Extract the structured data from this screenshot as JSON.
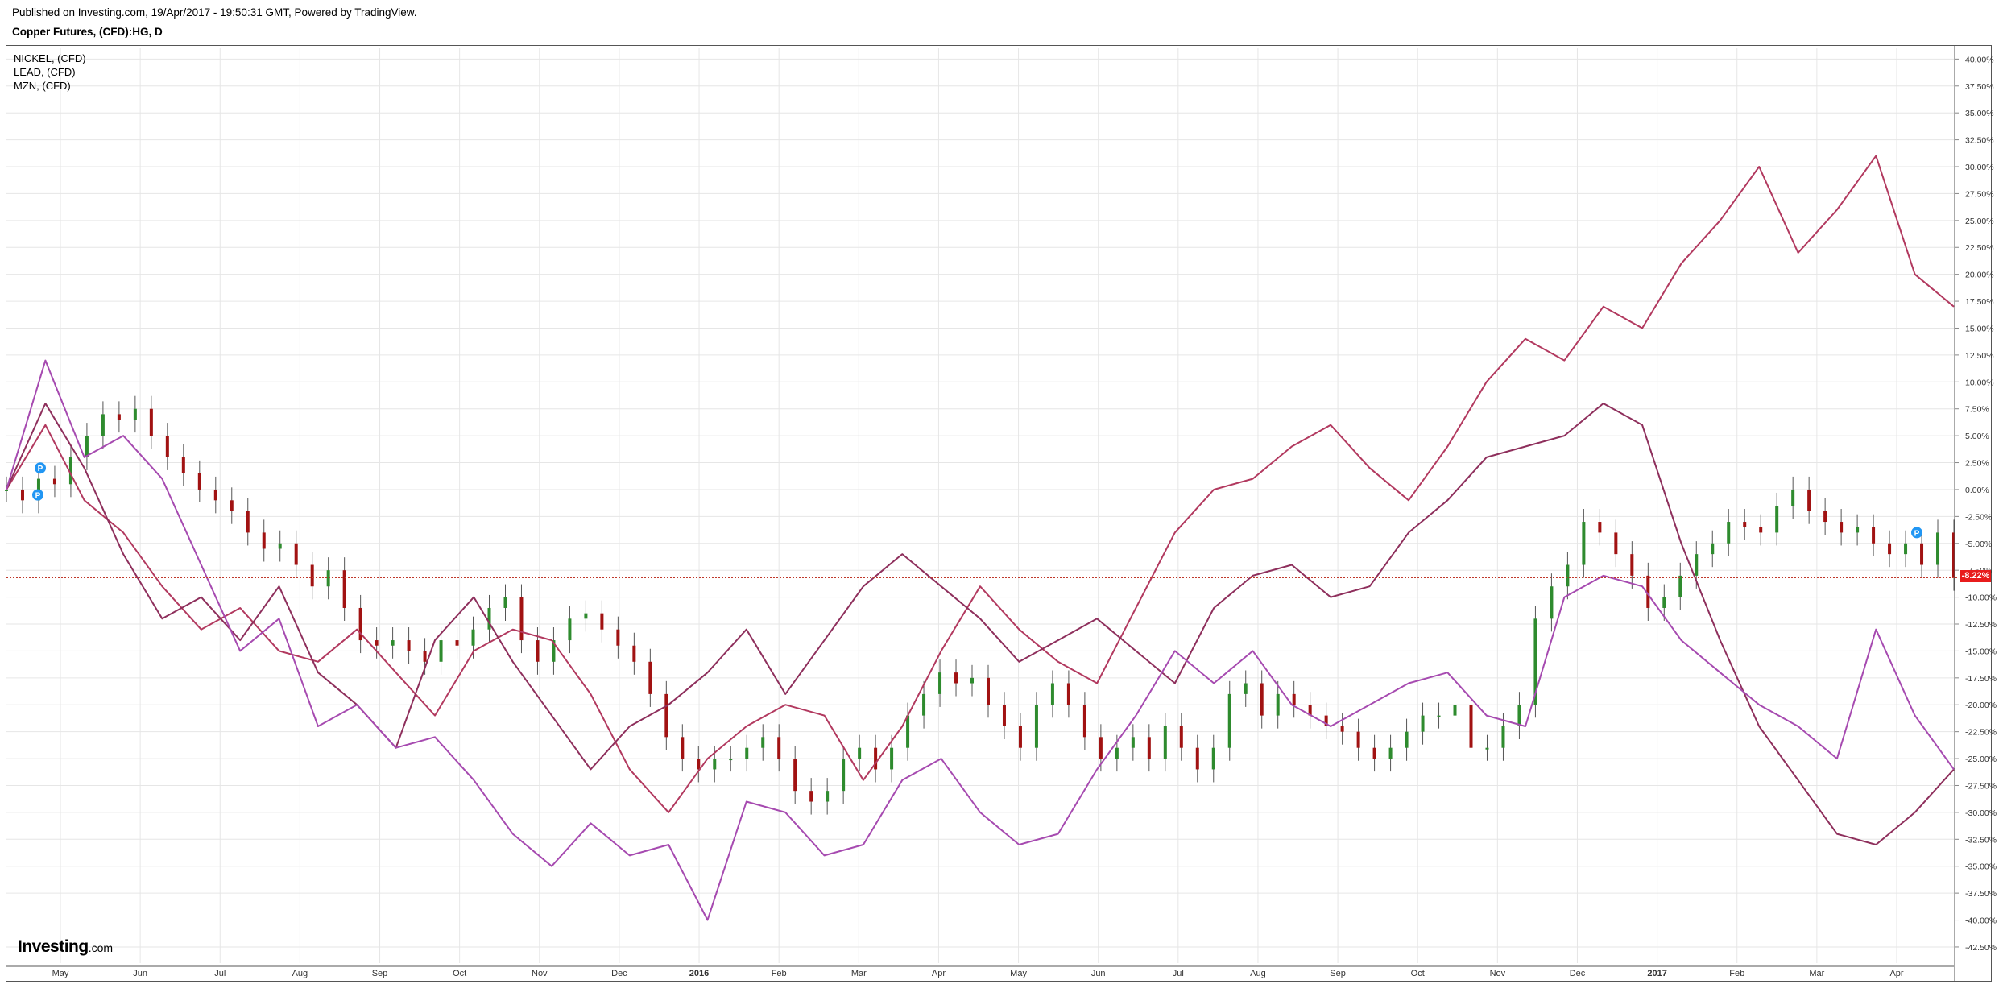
{
  "header": {
    "published": "Published on Investing.com, 19/Apr/2017 - 19:50:31 GMT, Powered by TradingView.",
    "symbol": "Copper Futures, (CFD):HG, D"
  },
  "legend": [
    "NICKEL,  (CFD)",
    "LEAD,  (CFD)",
    "MZN,  (CFD)"
  ],
  "logo": {
    "brand": "Investing",
    "suffix": ".com"
  },
  "last_value_tag": "-8.22%",
  "colors": {
    "grid": "#e6e6e6",
    "up_candle": "#2e8b2e",
    "down_candle": "#a11212",
    "nickel": "#b2395f",
    "lead": "#8e2f5c",
    "mzn": "#a64ab0",
    "last_line": "#c0392b",
    "marker": "#2196f3"
  },
  "chart_data": {
    "type": "line",
    "y_unit": "%",
    "ylim": [
      -44,
      41
    ],
    "y_ticks": [
      "40.00%",
      "37.50%",
      "35.00%",
      "32.50%",
      "30.00%",
      "27.50%",
      "25.00%",
      "22.50%",
      "20.00%",
      "17.50%",
      "15.00%",
      "12.50%",
      "10.00%",
      "7.50%",
      "5.00%",
      "2.50%",
      "0.00%",
      "-2.50%",
      "-5.00%",
      "-7.50%",
      "-10.00%",
      "-12.50%",
      "-15.00%",
      "-17.50%",
      "-20.00%",
      "-22.50%",
      "-25.00%",
      "-27.50%",
      "-30.00%",
      "-32.50%",
      "-35.00%",
      "-37.50%",
      "-40.00%",
      "-42.50%"
    ],
    "x_ticks": [
      "May",
      "Jun",
      "Jul",
      "Aug",
      "Sep",
      "Oct",
      "Nov",
      "Dec",
      "2016",
      "Feb",
      "Mar",
      "Apr",
      "May",
      "Jun",
      "Jul",
      "Aug",
      "Sep",
      "Oct",
      "Nov",
      "Dec",
      "2017",
      "Feb",
      "Mar",
      "Apr"
    ],
    "x_tick_bold": [
      "2016",
      "2017"
    ],
    "grid": true,
    "copper_candles_close": [
      0,
      -1,
      1,
      0.5,
      3,
      5,
      7,
      6.5,
      7.5,
      5,
      3,
      1.5,
      0,
      -1,
      -2,
      -4,
      -5.5,
      -5,
      -7,
      -9,
      -7.5,
      -11,
      -14,
      -14.5,
      -14,
      -15,
      -16,
      -14,
      -14.5,
      -13,
      -11,
      -10,
      -14,
      -16,
      -14,
      -12,
      -11.5,
      -13,
      -14.5,
      -16,
      -19,
      -23,
      -25,
      -26,
      -25,
      -25,
      -24,
      -23,
      -25,
      -28,
      -29,
      -28,
      -25,
      -24,
      -26,
      -24,
      -21,
      -19,
      -17,
      -18,
      -17.5,
      -20,
      -22,
      -24,
      -20,
      -18,
      -20,
      -23,
      -25,
      -24,
      -23,
      -25,
      -22,
      -24,
      -26,
      -24,
      -19,
      -18,
      -21,
      -19,
      -20,
      -21,
      -22,
      -22.5,
      -24,
      -25,
      -24,
      -22.5,
      -21,
      -21,
      -20,
      -24,
      -24,
      -22,
      -20,
      -12,
      -9,
      -7,
      -3,
      -4,
      -6,
      -8,
      -11,
      -10,
      -8,
      -6,
      -5,
      -3,
      -3.5,
      -4,
      -1.5,
      0,
      -2,
      -3,
      -4,
      -3.5,
      -5,
      -6,
      -5,
      -7,
      -4,
      -8.2
    ],
    "series": [
      {
        "name": "NICKEL,  (CFD)",
        "color_key": "nickel",
        "x": [
          0,
          0.02,
          0.04,
          0.06,
          0.08,
          0.1,
          0.12,
          0.14,
          0.16,
          0.18,
          0.2,
          0.22,
          0.24,
          0.26,
          0.28,
          0.3,
          0.32,
          0.34,
          0.36,
          0.38,
          0.4,
          0.42,
          0.44,
          0.46,
          0.48,
          0.5,
          0.52,
          0.54,
          0.56,
          0.58,
          0.6,
          0.62,
          0.64,
          0.66,
          0.68,
          0.7,
          0.72,
          0.74,
          0.76,
          0.78,
          0.8,
          0.82,
          0.84,
          0.86,
          0.88,
          0.9,
          0.92,
          0.94,
          0.96,
          0.98,
          1
        ],
        "y": [
          0,
          6,
          -1,
          -4,
          -9,
          -13,
          -11,
          -15,
          -16,
          -13,
          -17,
          -21,
          -15,
          -13,
          -14,
          -19,
          -26,
          -30,
          -25,
          -22,
          -20,
          -21,
          -27,
          -22,
          -15,
          -9,
          -13,
          -16,
          -18,
          -11,
          -4,
          0,
          1,
          4,
          6,
          2,
          -1,
          4,
          10,
          14,
          12,
          17,
          15,
          21,
          25,
          30,
          22,
          26,
          31,
          20,
          17
        ]
      },
      {
        "name": "LEAD,  (CFD)",
        "color_key": "lead",
        "x": [
          0,
          0.02,
          0.04,
          0.06,
          0.08,
          0.1,
          0.12,
          0.14,
          0.16,
          0.18,
          0.2,
          0.22,
          0.24,
          0.26,
          0.28,
          0.3,
          0.32,
          0.34,
          0.36,
          0.38,
          0.4,
          0.42,
          0.44,
          0.46,
          0.48,
          0.5,
          0.52,
          0.54,
          0.56,
          0.58,
          0.6,
          0.62,
          0.64,
          0.66,
          0.68,
          0.7,
          0.72,
          0.74,
          0.76,
          0.78,
          0.8,
          0.82,
          0.84,
          0.86,
          0.88,
          0.9,
          0.92,
          0.94,
          0.96,
          0.98,
          1
        ],
        "y": [
          0,
          8,
          2,
          -6,
          -12,
          -10,
          -14,
          -9,
          -17,
          -20,
          -24,
          -14,
          -10,
          -16,
          -21,
          -26,
          -22,
          -20,
          -17,
          -13,
          -19,
          -14,
          -9,
          -6,
          -9,
          -12,
          -16,
          -14,
          -12,
          -15,
          -18,
          -11,
          -8,
          -7,
          -10,
          -9,
          -4,
          -1,
          3,
          4,
          5,
          8,
          6,
          -5,
          -14,
          -22,
          -27,
          -32,
          -33,
          -30,
          -26
        ]
      },
      {
        "name": "MZN,  (CFD)",
        "color_key": "mzn",
        "x": [
          0,
          0.02,
          0.04,
          0.06,
          0.08,
          0.1,
          0.12,
          0.14,
          0.16,
          0.18,
          0.2,
          0.22,
          0.24,
          0.26,
          0.28,
          0.3,
          0.32,
          0.34,
          0.36,
          0.38,
          0.4,
          0.42,
          0.44,
          0.46,
          0.48,
          0.5,
          0.52,
          0.54,
          0.56,
          0.58,
          0.6,
          0.62,
          0.64,
          0.66,
          0.68,
          0.7,
          0.72,
          0.74,
          0.76,
          0.78,
          0.8,
          0.82,
          0.84,
          0.86,
          0.88,
          0.9,
          0.92,
          0.94,
          0.96,
          0.98,
          1
        ],
        "y": [
          0,
          12,
          3,
          5,
          1,
          -7,
          -15,
          -12,
          -22,
          -20,
          -24,
          -23,
          -27,
          -32,
          -35,
          -31,
          -34,
          -33,
          -40,
          -29,
          -30,
          -34,
          -33,
          -27,
          -25,
          -30,
          -33,
          -32,
          -26,
          -21,
          -15,
          -18,
          -15,
          -20,
          -22,
          -20,
          -18,
          -17,
          -21,
          -22,
          -10,
          -8,
          -9,
          -14,
          -17,
          -20,
          -22,
          -25,
          -13,
          -21,
          -26
        ]
      }
    ]
  }
}
